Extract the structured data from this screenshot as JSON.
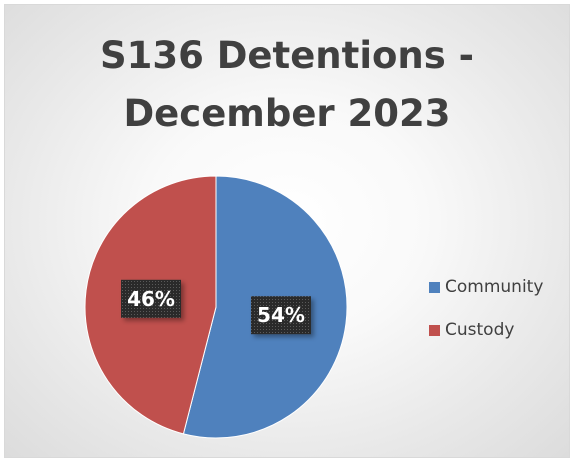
{
  "chart_data": {
    "type": "pie",
    "title_lines": [
      "S136 Detentions -",
      "December 2023"
    ],
    "categories": [
      "Community",
      "Custody"
    ],
    "values": [
      54,
      46
    ],
    "data_labels": [
      "54%",
      "46%"
    ],
    "colors": [
      "#4f81bd",
      "#c0504d"
    ],
    "start_angle_deg": 0,
    "direction": "clockwise",
    "legend_position": "right"
  }
}
